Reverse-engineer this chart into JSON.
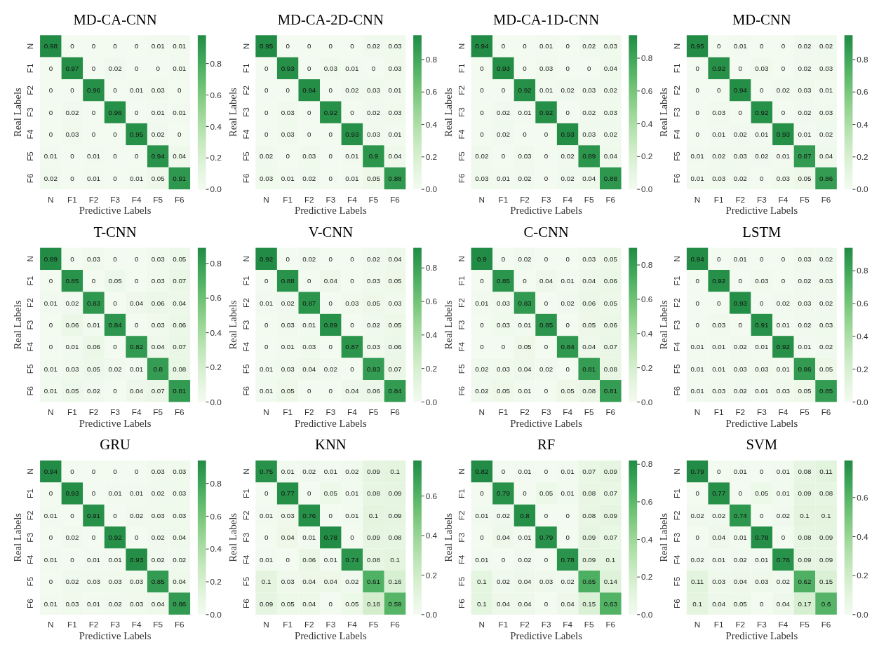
{
  "chart_data": [
    {
      "type": "heatmap",
      "title": "MD-CA-CNN",
      "xlabel": "Predictive Labels",
      "ylabel": "Real Labels",
      "categories": [
        "N",
        "F1",
        "F2",
        "F3",
        "F4",
        "F5",
        "F6"
      ],
      "y_categories": [
        "N",
        "F1",
        "F2",
        "F3",
        "F4",
        "F5",
        "F6"
      ],
      "data_labels": true,
      "clim": [
        0,
        0.98
      ],
      "cticks": [
        {
          "value": 0,
          "label": "0.0"
        },
        {
          "value": 0.2,
          "label": "0.2"
        },
        {
          "value": 0.4,
          "label": "0.4"
        },
        {
          "value": 0.6,
          "label": "0.6"
        },
        {
          "value": 0.8,
          "label": "0.8"
        }
      ],
      "cells": [
        [
          0.98,
          0,
          0,
          0,
          0,
          0.01,
          0.01
        ],
        [
          0,
          0.97,
          0,
          0.02,
          0,
          0,
          0.01
        ],
        [
          0,
          0,
          0.96,
          0,
          0.01,
          0.03,
          0
        ],
        [
          0,
          0.02,
          0,
          0.96,
          0,
          0.01,
          0.01
        ],
        [
          0,
          0.03,
          0,
          0,
          0.95,
          0.02,
          0
        ],
        [
          0.01,
          0,
          0.01,
          0,
          0,
          0.94,
          0.04
        ],
        [
          0.02,
          0,
          0.01,
          0,
          0.01,
          0.05,
          0.91
        ]
      ]
    },
    {
      "type": "heatmap",
      "title": "MD-CA-2D-CNN",
      "xlabel": "Predictive Labels",
      "ylabel": "Real Labels",
      "categories": [
        "N",
        "F1",
        "F2",
        "F3",
        "F4",
        "F5",
        "F6"
      ],
      "y_categories": [
        "N",
        "F1",
        "F2",
        "F3",
        "F4",
        "F5",
        "F6"
      ],
      "data_labels": true,
      "clim": [
        0,
        0.95
      ],
      "cticks": [
        {
          "value": 0,
          "label": "0.0"
        },
        {
          "value": 0.2,
          "label": "0.2"
        },
        {
          "value": 0.4,
          "label": "0.4"
        },
        {
          "value": 0.6,
          "label": "0.6"
        },
        {
          "value": 0.8,
          "label": "0.8"
        }
      ],
      "cells": [
        [
          0.95,
          0,
          0,
          0,
          0,
          0.02,
          0.03
        ],
        [
          0,
          0.93,
          0,
          0.03,
          0.01,
          0,
          0.03
        ],
        [
          0,
          0,
          0.94,
          0,
          0.02,
          0.03,
          0.01
        ],
        [
          0,
          0.03,
          0,
          0.92,
          0,
          0.02,
          0.03
        ],
        [
          0,
          0.03,
          0,
          0,
          0.93,
          0.03,
          0.01
        ],
        [
          0.02,
          0,
          0.03,
          0,
          0.01,
          0.9,
          0.04
        ],
        [
          0.03,
          0.01,
          0.02,
          0,
          0.01,
          0.05,
          0.88
        ]
      ]
    },
    {
      "type": "heatmap",
      "title": "MD-CA-1D-CNN",
      "xlabel": "Predictive Labels",
      "ylabel": "Real Labels",
      "categories": [
        "N",
        "F1",
        "F2",
        "F3",
        "F4",
        "F5",
        "F6"
      ],
      "y_categories": [
        "N",
        "F1",
        "F2",
        "F3",
        "F4",
        "F5",
        "F6"
      ],
      "data_labels": true,
      "clim": [
        0,
        0.94
      ],
      "cticks": [
        {
          "value": 0,
          "label": "0.0"
        },
        {
          "value": 0.2,
          "label": "0.2"
        },
        {
          "value": 0.4,
          "label": "0.4"
        },
        {
          "value": 0.6,
          "label": "0.6"
        },
        {
          "value": 0.8,
          "label": "0.8"
        }
      ],
      "cells": [
        [
          0.94,
          0,
          0,
          0.01,
          0,
          0.02,
          0.03
        ],
        [
          0,
          0.93,
          0,
          0.03,
          0,
          0,
          0.04
        ],
        [
          0,
          0,
          0.92,
          0.01,
          0.02,
          0.03,
          0.02
        ],
        [
          0,
          0.02,
          0.01,
          0.92,
          0,
          0.02,
          0.03
        ],
        [
          0,
          0.02,
          0,
          0,
          0.93,
          0.03,
          0.02
        ],
        [
          0.02,
          0,
          0.03,
          0,
          0.02,
          0.89,
          0.04
        ],
        [
          0.03,
          0.01,
          0.02,
          0,
          0.02,
          0.04,
          0.88
        ]
      ]
    },
    {
      "type": "heatmap",
      "title": "MD-CNN",
      "xlabel": "Predictive Labels",
      "ylabel": "Real Labels",
      "categories": [
        "N",
        "F1",
        "F2",
        "F3",
        "F4",
        "F5",
        "F6"
      ],
      "y_categories": [
        "N",
        "F1",
        "F2",
        "F3",
        "F4",
        "F5",
        "F6"
      ],
      "data_labels": true,
      "clim": [
        0,
        0.95
      ],
      "cticks": [
        {
          "value": 0,
          "label": "0.0"
        },
        {
          "value": 0.2,
          "label": "0.2"
        },
        {
          "value": 0.4,
          "label": "0.4"
        },
        {
          "value": 0.6,
          "label": "0.6"
        },
        {
          "value": 0.8,
          "label": "0.8"
        }
      ],
      "cells": [
        [
          0.95,
          0,
          0.01,
          0,
          0,
          0.02,
          0.02
        ],
        [
          0,
          0.92,
          0,
          0.03,
          0,
          0.02,
          0.03
        ],
        [
          0,
          0,
          0.94,
          0,
          0.02,
          0.03,
          0.01
        ],
        [
          0,
          0.03,
          0,
          0.92,
          0,
          0.02,
          0.03
        ],
        [
          0,
          0.01,
          0.02,
          0.01,
          0.93,
          0.01,
          0.02
        ],
        [
          0.01,
          0.02,
          0.03,
          0.02,
          0.01,
          0.87,
          0.04
        ],
        [
          0.01,
          0.03,
          0.02,
          0,
          0.03,
          0.05,
          0.86
        ]
      ]
    },
    {
      "type": "heatmap",
      "title": "T-CNN",
      "xlabel": "Predictive Labels",
      "ylabel": "Real Labels",
      "categories": [
        "N",
        "F1",
        "F2",
        "F3",
        "F4",
        "F5",
        "F6"
      ],
      "y_categories": [
        "N",
        "F1",
        "F2",
        "F3",
        "F4",
        "F5",
        "F6"
      ],
      "data_labels": true,
      "clim": [
        0,
        0.89
      ],
      "cticks": [
        {
          "value": 0,
          "label": "0.0"
        },
        {
          "value": 0.2,
          "label": "0.2"
        },
        {
          "value": 0.4,
          "label": "0.4"
        },
        {
          "value": 0.6,
          "label": "0.6"
        },
        {
          "value": 0.8,
          "label": "0.8"
        }
      ],
      "cells": [
        [
          0.89,
          0,
          0.03,
          0,
          0,
          0.03,
          0.05
        ],
        [
          0,
          0.85,
          0,
          0.05,
          0,
          0.03,
          0.07
        ],
        [
          0.01,
          0.02,
          0.83,
          0,
          0.04,
          0.06,
          0.04
        ],
        [
          0,
          0.06,
          0.01,
          0.84,
          0,
          0.03,
          0.06
        ],
        [
          0,
          0.01,
          0.06,
          0,
          0.82,
          0.04,
          0.07
        ],
        [
          0.01,
          0.03,
          0.05,
          0.02,
          0.01,
          0.8,
          0.08
        ],
        [
          0.01,
          0.05,
          0.02,
          0,
          0.04,
          0.07,
          0.81
        ]
      ]
    },
    {
      "type": "heatmap",
      "title": "V-CNN",
      "xlabel": "Predictive Labels",
      "ylabel": "Real Labels",
      "categories": [
        "N",
        "F1",
        "F2",
        "F3",
        "F4",
        "F5",
        "F6"
      ],
      "y_categories": [
        "N",
        "F1",
        "F2",
        "F3",
        "F4",
        "F5",
        "F6"
      ],
      "data_labels": true,
      "clim": [
        0,
        0.92
      ],
      "cticks": [
        {
          "value": 0,
          "label": "0.0"
        },
        {
          "value": 0.2,
          "label": "0.2"
        },
        {
          "value": 0.4,
          "label": "0.4"
        },
        {
          "value": 0.6,
          "label": "0.6"
        },
        {
          "value": 0.8,
          "label": "0.8"
        }
      ],
      "cells": [
        [
          0.92,
          0,
          0.02,
          0,
          0,
          0.02,
          0.04
        ],
        [
          0,
          0.88,
          0,
          0.04,
          0,
          0.03,
          0.05
        ],
        [
          0.01,
          0.02,
          0.87,
          0,
          0.03,
          0.05,
          0.03
        ],
        [
          0,
          0.03,
          0.01,
          0.89,
          0,
          0.02,
          0.05
        ],
        [
          0,
          0.01,
          0.03,
          0,
          0.87,
          0.03,
          0.06
        ],
        [
          0.01,
          0.03,
          0.04,
          0.02,
          0,
          0.83,
          0.07
        ],
        [
          0.01,
          0.05,
          0,
          0,
          0.04,
          0.06,
          0.84
        ]
      ]
    },
    {
      "type": "heatmap",
      "title": "C-CNN",
      "xlabel": "Predictive Labels",
      "ylabel": "Real Labels",
      "categories": [
        "N",
        "F1",
        "F2",
        "F3",
        "F4",
        "F5",
        "F6"
      ],
      "y_categories": [
        "N",
        "F1",
        "F2",
        "F3",
        "F4",
        "F5",
        "F6"
      ],
      "data_labels": true,
      "clim": [
        0,
        0.9
      ],
      "cticks": [
        {
          "value": 0,
          "label": "0.0"
        },
        {
          "value": 0.2,
          "label": "0.2"
        },
        {
          "value": 0.4,
          "label": "0.4"
        },
        {
          "value": 0.6,
          "label": "0.6"
        },
        {
          "value": 0.8,
          "label": "0.8"
        }
      ],
      "cells": [
        [
          0.9,
          0,
          0.02,
          0,
          0,
          0.03,
          0.05
        ],
        [
          0,
          0.85,
          0,
          0.04,
          0.01,
          0.04,
          0.06
        ],
        [
          0.01,
          0.03,
          0.83,
          0,
          0.02,
          0.06,
          0.05
        ],
        [
          0,
          0.03,
          0.01,
          0.85,
          0,
          0.05,
          0.06
        ],
        [
          0,
          0,
          0.05,
          0,
          0.84,
          0.04,
          0.07
        ],
        [
          0.02,
          0.03,
          0.04,
          0.02,
          0,
          0.81,
          0.08
        ],
        [
          0.02,
          0.05,
          0.01,
          0,
          0.05,
          0.08,
          0.81
        ]
      ]
    },
    {
      "type": "heatmap",
      "title": "LSTM",
      "xlabel": "Predictive Labels",
      "ylabel": "Real Labels",
      "categories": [
        "N",
        "F1",
        "F2",
        "F3",
        "F4",
        "F5",
        "F6"
      ],
      "y_categories": [
        "N",
        "F1",
        "F2",
        "F3",
        "F4",
        "F5",
        "F6"
      ],
      "data_labels": true,
      "clim": [
        0,
        0.94
      ],
      "cticks": [
        {
          "value": 0,
          "label": "0.0"
        },
        {
          "value": 0.2,
          "label": "0.2"
        },
        {
          "value": 0.4,
          "label": "0.4"
        },
        {
          "value": 0.6,
          "label": "0.6"
        },
        {
          "value": 0.8,
          "label": "0.8"
        }
      ],
      "cells": [
        [
          0.94,
          0,
          0.01,
          0,
          0,
          0.03,
          0.02
        ],
        [
          0,
          0.92,
          0,
          0.03,
          0,
          0.02,
          0.03
        ],
        [
          0,
          0,
          0.93,
          0,
          0.02,
          0.03,
          0.02
        ],
        [
          0,
          0.03,
          0,
          0.91,
          0.01,
          0.02,
          0.03
        ],
        [
          0.01,
          0.01,
          0.02,
          0.01,
          0.92,
          0.01,
          0.02
        ],
        [
          0.01,
          0.01,
          0.03,
          0.03,
          0.01,
          0.86,
          0.05
        ],
        [
          0.01,
          0.03,
          0.02,
          0.01,
          0.03,
          0.05,
          0.85
        ]
      ]
    },
    {
      "type": "heatmap",
      "title": "GRU",
      "xlabel": "Predictive Labels",
      "ylabel": "Real Labels",
      "categories": [
        "N",
        "F1",
        "F2",
        "F3",
        "F4",
        "F5",
        "F6"
      ],
      "y_categories": [
        "N",
        "F1",
        "F2",
        "F3",
        "F4",
        "F5",
        "F6"
      ],
      "data_labels": true,
      "clim": [
        0,
        0.94
      ],
      "cticks": [
        {
          "value": 0,
          "label": "0.0"
        },
        {
          "value": 0.2,
          "label": "0.2"
        },
        {
          "value": 0.4,
          "label": "0.4"
        },
        {
          "value": 0.6,
          "label": "0.6"
        },
        {
          "value": 0.8,
          "label": "0.8"
        }
      ],
      "cells": [
        [
          0.94,
          0,
          0,
          0,
          0,
          0.03,
          0.03
        ],
        [
          0,
          0.93,
          0,
          0.01,
          0.01,
          0.02,
          0.03
        ],
        [
          0.01,
          0,
          0.91,
          0,
          0.02,
          0.03,
          0.03
        ],
        [
          0,
          0.02,
          0,
          0.92,
          0,
          0.02,
          0.04
        ],
        [
          0.01,
          0,
          0.01,
          0.01,
          0.93,
          0.02,
          0.02
        ],
        [
          0,
          0.02,
          0.03,
          0.03,
          0.03,
          0.85,
          0.04
        ],
        [
          0.01,
          0.03,
          0.01,
          0.02,
          0.03,
          0.04,
          0.86
        ]
      ]
    },
    {
      "type": "heatmap",
      "title": "KNN",
      "xlabel": "Predictive Labels",
      "ylabel": "Real Labels",
      "categories": [
        "N",
        "F1",
        "F2",
        "F3",
        "F4",
        "F5",
        "F6"
      ],
      "y_categories": [
        "N",
        "F1",
        "F2",
        "F3",
        "F4",
        "F5",
        "F6"
      ],
      "data_labels": true,
      "clim": [
        0,
        0.78
      ],
      "cticks": [
        {
          "value": 0,
          "label": "0.0"
        },
        {
          "value": 0.2,
          "label": "0.2"
        },
        {
          "value": 0.4,
          "label": "0.4"
        },
        {
          "value": 0.6,
          "label": "0.6"
        }
      ],
      "cells": [
        [
          0.75,
          0.01,
          0.02,
          0.01,
          0.02,
          0.09,
          0.1
        ],
        [
          0,
          0.77,
          0,
          0.05,
          0.01,
          0.08,
          0.09
        ],
        [
          0.01,
          0.03,
          0.76,
          0,
          0.01,
          0.1,
          0.09
        ],
        [
          0,
          0.04,
          0.01,
          0.78,
          0,
          0.09,
          0.08
        ],
        [
          0.01,
          0,
          0.06,
          0.01,
          0.74,
          0.08,
          0.1
        ],
        [
          0.1,
          0.03,
          0.04,
          0.04,
          0.02,
          0.61,
          0.16
        ],
        [
          0.09,
          0.05,
          0.04,
          0,
          0.05,
          0.18,
          0.59
        ]
      ]
    },
    {
      "type": "heatmap",
      "title": "RF",
      "xlabel": "Predictive Labels",
      "ylabel": "Real Labels",
      "categories": [
        "N",
        "F1",
        "F2",
        "F3",
        "F4",
        "F5",
        "F6"
      ],
      "y_categories": [
        "N",
        "F1",
        "F2",
        "F3",
        "F4",
        "F5",
        "F6"
      ],
      "data_labels": true,
      "clim": [
        0,
        0.82
      ],
      "cticks": [
        {
          "value": 0,
          "label": "0.0"
        },
        {
          "value": 0.2,
          "label": "0.2"
        },
        {
          "value": 0.4,
          "label": "0.4"
        },
        {
          "value": 0.6,
          "label": "0.6"
        },
        {
          "value": 0.8,
          "label": "0.8"
        }
      ],
      "cells": [
        [
          0.82,
          0,
          0.01,
          0,
          0.01,
          0.07,
          0.09
        ],
        [
          0,
          0.79,
          0,
          0.05,
          0.01,
          0.08,
          0.07
        ],
        [
          0.01,
          0.02,
          0.8,
          0,
          0,
          0.08,
          0.09
        ],
        [
          0,
          0.04,
          0.01,
          0.79,
          0,
          0.09,
          0.07
        ],
        [
          0.01,
          0,
          0.02,
          0,
          0.78,
          0.09,
          0.1
        ],
        [
          0.1,
          0.02,
          0.04,
          0.03,
          0.02,
          0.65,
          0.14
        ],
        [
          0.1,
          0.04,
          0.04,
          0,
          0.04,
          0.15,
          0.63
        ]
      ]
    },
    {
      "type": "heatmap",
      "title": "SVM",
      "xlabel": "Predictive Labels",
      "ylabel": "Real Labels",
      "categories": [
        "N",
        "F1",
        "F2",
        "F3",
        "F4",
        "F5",
        "F6"
      ],
      "y_categories": [
        "N",
        "F1",
        "F2",
        "F3",
        "F4",
        "F5",
        "F6"
      ],
      "data_labels": true,
      "clim": [
        0,
        0.79
      ],
      "cticks": [
        {
          "value": 0,
          "label": "0.0"
        },
        {
          "value": 0.2,
          "label": "0.2"
        },
        {
          "value": 0.4,
          "label": "0.4"
        },
        {
          "value": 0.6,
          "label": "0.6"
        }
      ],
      "cells": [
        [
          0.79,
          0,
          0.01,
          0,
          0.01,
          0.08,
          0.11
        ],
        [
          0,
          0.77,
          0,
          0.05,
          0.01,
          0.09,
          0.08
        ],
        [
          0.02,
          0.02,
          0.74,
          0,
          0.02,
          0.1,
          0.1
        ],
        [
          0,
          0.04,
          0.01,
          0.78,
          0,
          0.08,
          0.09
        ],
        [
          0.02,
          0.01,
          0.02,
          0.01,
          0.76,
          0.09,
          0.09
        ],
        [
          0.11,
          0.03,
          0.04,
          0.03,
          0.02,
          0.62,
          0.15
        ],
        [
          0.1,
          0.04,
          0.05,
          0,
          0.04,
          0.17,
          0.6
        ]
      ]
    }
  ]
}
